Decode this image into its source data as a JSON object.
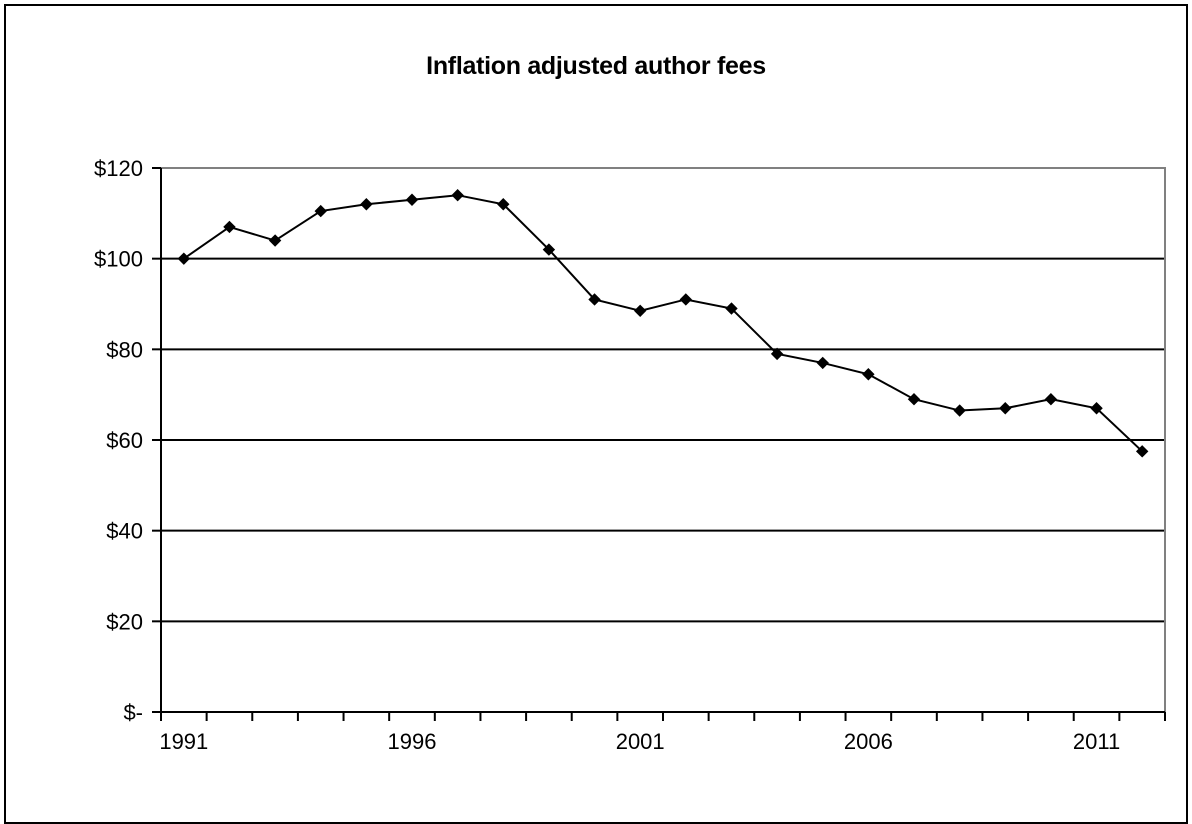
{
  "chart_data": {
    "type": "line",
    "title": "Inflation adjusted author fees",
    "xlabel": "",
    "ylabel": "",
    "x": [
      1991,
      1992,
      1993,
      1994,
      1995,
      1996,
      1997,
      1998,
      1999,
      2000,
      2001,
      2002,
      2003,
      2004,
      2005,
      2006,
      2007,
      2008,
      2009,
      2010,
      2011,
      2012
    ],
    "series": [
      {
        "values": [
          100,
          107,
          104,
          110.5,
          112,
          113,
          114,
          112,
          102,
          91,
          88.5,
          91,
          89,
          79,
          77,
          74.5,
          69,
          66.5,
          67,
          69,
          67,
          57.5
        ]
      }
    ],
    "xlim": [
      1990.5,
      2012.5
    ],
    "ylim": [
      0,
      120
    ],
    "y_ticks": [
      0,
      20,
      40,
      60,
      80,
      100,
      120
    ],
    "y_tick_labels": [
      "$-",
      "$20",
      "$40",
      "$60",
      "$80",
      "$100",
      "$120"
    ],
    "x_tick_labels": [
      "1991",
      "1996",
      "2001",
      "2006",
      "2011"
    ],
    "x_tick_label_years": [
      1991,
      1996,
      2001,
      2006,
      2011
    ],
    "grid": "horizontal",
    "legend": "none",
    "line_color": "#000000",
    "marker": "diamond",
    "plot_border_color": "#808080"
  }
}
